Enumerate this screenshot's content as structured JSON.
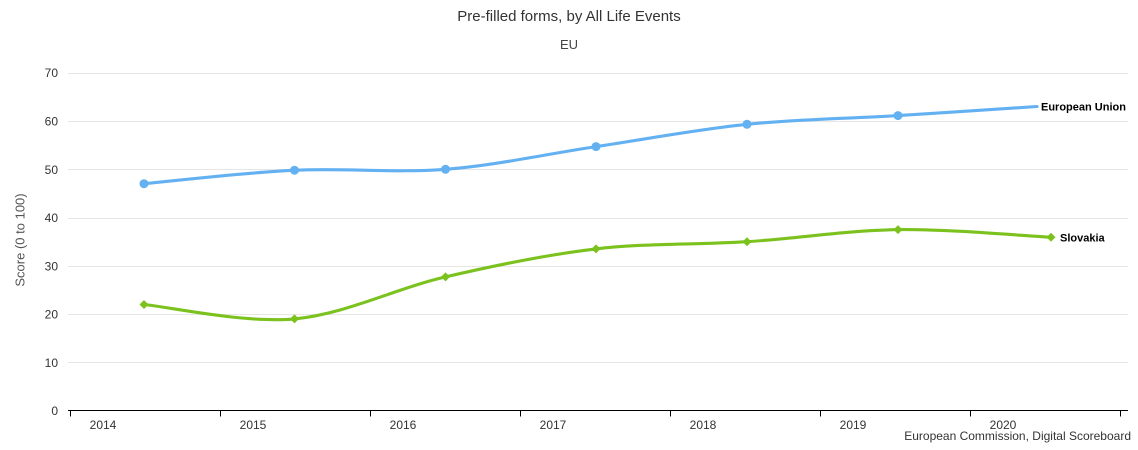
{
  "chart_data": {
    "type": "line",
    "title": "Pre-filled forms, by All Life Events",
    "subtitle": "EU",
    "xlabel": "",
    "ylabel": "Score (0 to 100)",
    "ylim": [
      0,
      70
    ],
    "yticks": [
      0,
      10,
      20,
      30,
      40,
      50,
      60,
      70
    ],
    "categories": [
      "2014",
      "2015",
      "2016",
      "2017",
      "2018",
      "2019",
      "2020"
    ],
    "grid": true,
    "legend_position": "end-of-line-labels",
    "line_style": "smooth",
    "series": [
      {
        "name": "European Union",
        "color": "#64b1f2",
        "marker": "circle",
        "values": [
          47.0,
          49.8,
          50.0,
          54.7,
          59.3,
          61.1,
          63.0
        ]
      },
      {
        "name": "Slovakia",
        "color": "#7cc21e",
        "marker": "diamond",
        "values": [
          22.0,
          19.0,
          27.7,
          33.5,
          35.0,
          37.5,
          35.9
        ]
      }
    ],
    "annotation": "European Commission, Digital Scoreboard"
  },
  "colors": {
    "gridline": "#e6e6e6",
    "axis": "#000000",
    "tick_label": "#333333",
    "series_label": "#000000"
  }
}
